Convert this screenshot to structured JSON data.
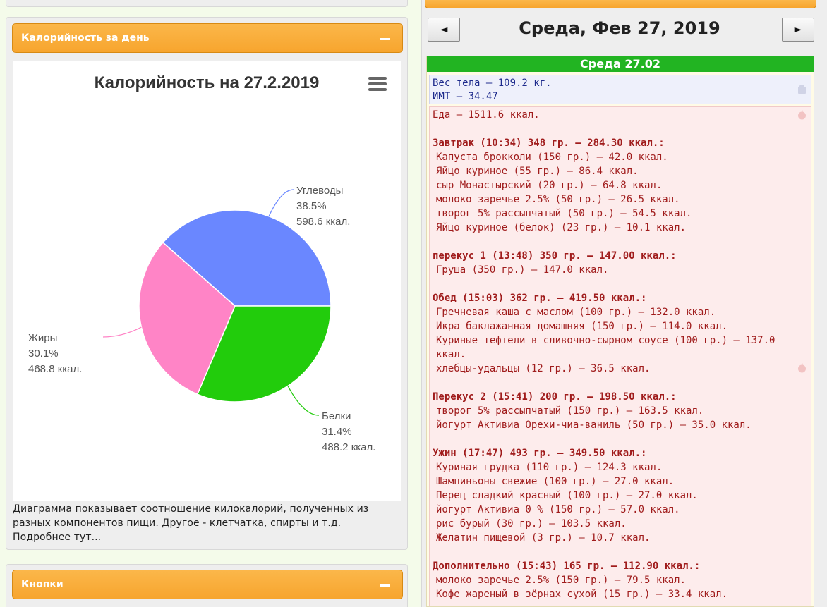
{
  "calorie_panel": {
    "header": "Калорийность за день",
    "chart_title": "Калорийность на 27.2.2019",
    "caption_lines": [
      "Диаграмма показывает соотношение килокалорий, полученных из",
      "разных компонентов пищи. Другое - клетчатка, спирты и т.д.",
      "Подробнее тут..."
    ]
  },
  "buttons_panel": {
    "header": "Кнопки"
  },
  "chart_data": {
    "type": "pie",
    "title": "Калорийность на 27.2.2019",
    "series": [
      {
        "name": "Углеводы",
        "percent": 38.5,
        "value": 598.6,
        "value_label": "598.6 ккал.",
        "percent_label": "38.5%",
        "color": "#6a87ff"
      },
      {
        "name": "Белки",
        "percent": 31.4,
        "value": 488.2,
        "value_label": "488.2 ккал.",
        "percent_label": "31.4%",
        "color": "#22cc0c"
      },
      {
        "name": "Жиры",
        "percent": 30.1,
        "value": 468.8,
        "value_label": "468.8 ккал.",
        "percent_label": "30.1%",
        "color": "#ff84c6"
      }
    ]
  },
  "diary": {
    "prev_label": "◄",
    "next_label": "►",
    "date_title": "Среда, Фев 27, 2019",
    "day_header": "Среда 27.02",
    "weight": "Вес тела — 109.2 кг.",
    "bmi": "ИМТ — 34.47",
    "food_total": "Еда — 1511.6 ккал.",
    "meals": [
      {
        "title": "Завтрак (10:34) 348 гр. — 284.30 ккал.:",
        "items": [
          "Капуста брокколи (150 гр.) — 42.0 ккал.",
          "Яйцо куриное (55 гр.) — 86.4 ккал.",
          "сыр Монастырский (20 гр.) — 64.8 ккал.",
          "молоко заречье 2.5% (50 гр.) — 26.5 ккал.",
          "творог 5% рассыпчатый (50 гр.) — 54.5 ккал.",
          "Яйцо куриное (белок) (23 гр.) — 10.1 ккал."
        ]
      },
      {
        "title": "перекус 1 (13:48) 350 гр. — 147.00 ккал.:",
        "items": [
          "Груша (350 гр.) — 147.0 ккал."
        ]
      },
      {
        "title": "Обед (15:03) 362 гр. — 419.50 ккал.:",
        "items": [
          "Гречневая каша с маслом (100 гр.) — 132.0 ккал.",
          "Икра баклажанная домашняя (150 гр.) — 114.0 ккал.",
          "Куриные тефтели в сливочно-сырном соусе (100 гр.) — 137.0 ккал.",
          "хлебцы-удальцы (12 гр.) — 36.5 ккал."
        ]
      },
      {
        "title": "Перекус 2 (15:41) 200 гр. — 198.50 ккал.:",
        "items": [
          "творог 5% рассыпчатый (150 гр.) — 163.5 ккал.",
          "йогурт Активиа Орехи-чиа-ваниль (50 гр.) — 35.0 ккал."
        ]
      },
      {
        "title": "Ужин (17:47) 493 гр. — 349.50 ккал.:",
        "items": [
          "Куриная грудка (110 гр.) — 124.3 ккал.",
          "Шампиньоны свежие (100 гр.) — 27.0 ккал.",
          "Перец сладкий красный (100 гр.) — 27.0 ккал.",
          "йогурт Активиа 0 % (150 гр.) — 57.0 ккал.",
          "рис бурый (30 гр.) — 103.5 ккал.",
          "Желатин пищевой (3 гр.) — 10.7 ккал."
        ]
      },
      {
        "title": "Дополнительно (15:43) 165 гр. — 112.90 ккал.:",
        "items": [
          "молоко заречье 2.5% (150 гр.) — 79.5 ккал.",
          "Кофе жареный в зёрнах сухой (15 гр.) — 33.4 ккал."
        ]
      }
    ]
  }
}
